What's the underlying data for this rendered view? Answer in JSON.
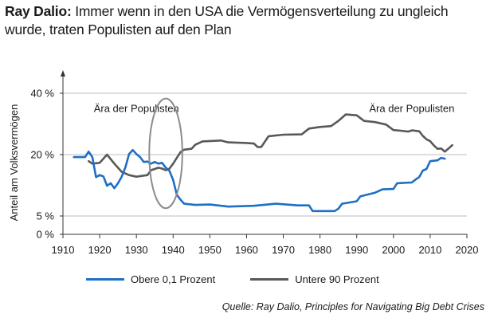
{
  "header": {
    "title_bold": "Ray Dalio:",
    "title_rest": " Immer wenn in den USA die Vermögensverteilung zu ungleich wurde, traten Populisten auf den Plan"
  },
  "source": "Quelle: Ray Dalio, Principles for Navigating Big Debt Crises",
  "colors": {
    "blue": "#1f6fc4",
    "gray": "#595959",
    "grid": "#bdbdbd",
    "circle": "#8c8c8c"
  },
  "chart_data": {
    "type": "line",
    "ylabel": "Anteil am Volksvermögen",
    "xlim": [
      1910,
      2020
    ],
    "ylim": [
      0,
      40
    ],
    "x_ticks": [
      1910,
      1920,
      1930,
      1940,
      1950,
      1960,
      1970,
      1980,
      1990,
      2000,
      2010,
      2020
    ],
    "y_ticks": [
      {
        "value": 0,
        "label": "0 %"
      },
      {
        "value": 5,
        "label": "5 %"
      },
      {
        "value": 20,
        "label": "20 %"
      },
      {
        "value": 40,
        "label": "40 %"
      }
    ],
    "grid": "horizontal",
    "annotations": [
      {
        "text": "Ära der Populisten",
        "x": 1930,
        "y": 35
      },
      {
        "text": "Ära der Populisten",
        "x": 2005,
        "y": 35
      }
    ],
    "highlight_ellipse": {
      "cx": 1938,
      "cy": 20.4,
      "rx": 4.5,
      "ry": 13.5
    },
    "series": [
      {
        "name": "Obere 0,1 Prozent",
        "color": "#1f6fc4",
        "points": [
          [
            1913,
            19.4
          ],
          [
            1916,
            19.4
          ],
          [
            1917,
            21.0
          ],
          [
            1918,
            19.4
          ],
          [
            1919,
            14.5
          ],
          [
            1920,
            15.0
          ],
          [
            1921,
            14.7
          ],
          [
            1922,
            12.4
          ],
          [
            1923,
            13.0
          ],
          [
            1924,
            11.8
          ],
          [
            1925,
            13.0
          ],
          [
            1926,
            14.6
          ],
          [
            1927,
            16.9
          ],
          [
            1928,
            20.2
          ],
          [
            1929,
            21.5
          ],
          [
            1930,
            20.2
          ],
          [
            1931,
            19.4
          ],
          [
            1932,
            18.2
          ],
          [
            1933,
            18.3
          ],
          [
            1934,
            17.8
          ],
          [
            1935,
            18.2
          ],
          [
            1936,
            17.8
          ],
          [
            1937,
            18.0
          ],
          [
            1938,
            16.8
          ],
          [
            1939,
            16.0
          ],
          [
            1940,
            13.8
          ],
          [
            1941,
            10.2
          ],
          [
            1942,
            9.0
          ],
          [
            1943,
            8.0
          ],
          [
            1946,
            7.7
          ],
          [
            1950,
            7.8
          ],
          [
            1955,
            7.3
          ],
          [
            1962,
            7.5
          ],
          [
            1968,
            8.0
          ],
          [
            1974,
            7.6
          ],
          [
            1977,
            7.6
          ],
          [
            1978,
            6.2
          ],
          [
            1984,
            6.2
          ],
          [
            1985,
            6.8
          ],
          [
            1986,
            8.0
          ],
          [
            1990,
            8.6
          ],
          [
            1991,
            9.8
          ],
          [
            1995,
            10.7
          ],
          [
            1997,
            11.5
          ],
          [
            2000,
            11.6
          ],
          [
            2001,
            13.0
          ],
          [
            2005,
            13.2
          ],
          [
            2006,
            13.9
          ],
          [
            2007,
            14.5
          ],
          [
            2008,
            16.1
          ],
          [
            2009,
            16.5
          ],
          [
            2010,
            18.4
          ],
          [
            2012,
            18.6
          ],
          [
            2013,
            19.2
          ],
          [
            2014,
            19.0
          ]
        ]
      },
      {
        "name": "Untere 90 Prozent",
        "color": "#595959",
        "points": [
          [
            1917,
            18.4
          ],
          [
            1918,
            17.8
          ],
          [
            1920,
            18.0
          ],
          [
            1922,
            20.0
          ],
          [
            1924,
            17.8
          ],
          [
            1926,
            15.8
          ],
          [
            1928,
            15.0
          ],
          [
            1930,
            14.6
          ],
          [
            1933,
            15.0
          ],
          [
            1934,
            16.2
          ],
          [
            1935,
            16.5
          ],
          [
            1936,
            16.8
          ],
          [
            1937,
            16.6
          ],
          [
            1938,
            16.2
          ],
          [
            1939,
            16.6
          ],
          [
            1940,
            17.8
          ],
          [
            1941,
            19.2
          ],
          [
            1942,
            20.8
          ],
          [
            1943,
            21.6
          ],
          [
            1945,
            21.9
          ],
          [
            1946,
            23.2
          ],
          [
            1948,
            24.3
          ],
          [
            1953,
            24.6
          ],
          [
            1955,
            24.0
          ],
          [
            1960,
            23.8
          ],
          [
            1962,
            23.6
          ],
          [
            1963,
            22.5
          ],
          [
            1964,
            22.5
          ],
          [
            1966,
            26.0
          ],
          [
            1970,
            26.5
          ],
          [
            1975,
            26.6
          ],
          [
            1977,
            28.5
          ],
          [
            1980,
            29.0
          ],
          [
            1983,
            29.3
          ],
          [
            1985,
            31.0
          ],
          [
            1987,
            33.1
          ],
          [
            1990,
            32.8
          ],
          [
            1992,
            31.0
          ],
          [
            1995,
            30.6
          ],
          [
            1998,
            29.8
          ],
          [
            2000,
            28.0
          ],
          [
            2002,
            27.8
          ],
          [
            2004,
            27.5
          ],
          [
            2005,
            27.9
          ],
          [
            2007,
            27.6
          ],
          [
            2008,
            26.1
          ],
          [
            2009,
            25.0
          ],
          [
            2010,
            24.4
          ],
          [
            2011,
            23.0
          ],
          [
            2012,
            21.9
          ],
          [
            2013,
            22.0
          ],
          [
            2014,
            21.0
          ],
          [
            2015,
            22.0
          ],
          [
            2016,
            23.1
          ]
        ]
      }
    ]
  }
}
